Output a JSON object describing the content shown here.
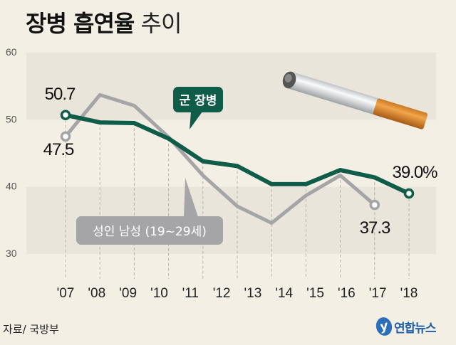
{
  "title": {
    "bold": "장병 흡연율",
    "light": "추이"
  },
  "source": "자료/ 국방부",
  "logo_text": "연합뉴스",
  "chart_data": {
    "type": "line",
    "title": "장병 흡연율 추이",
    "x_labels": [
      "'07",
      "'08",
      "'09",
      "'10",
      "'11",
      "'12",
      "'13",
      "'14",
      "'15",
      "'16",
      "'17",
      "'18"
    ],
    "y_ticks": [
      60,
      50,
      40,
      30
    ],
    "ylim": [
      30,
      60
    ],
    "grid": "horizontal bands",
    "series": [
      {
        "name": "군 장병",
        "color": "#0f5c48",
        "values": [
          50.7,
          49.6,
          49.5,
          47.2,
          43.8,
          43.1,
          40.4,
          40.4,
          42.5,
          41.4,
          39.0
        ],
        "data_labels": {
          "first": "50.7",
          "last": "39.0%"
        }
      },
      {
        "name": "성인 남성 (19~29세)",
        "color": "#a5a5a7",
        "values": [
          47.5,
          53.7,
          52.1,
          47.4,
          41.7,
          37.1,
          34.6,
          38.7,
          41.7,
          37.3
        ],
        "data_labels": {
          "first": "47.5",
          "last": "37.3"
        }
      }
    ]
  },
  "colors": {
    "background": "#f3efe5",
    "band": "#e9e5da",
    "green": "#0f5c48",
    "gray": "#a5a5a7"
  },
  "icons": [
    "cigarette-icon",
    "yonhap-logo-icon"
  ]
}
